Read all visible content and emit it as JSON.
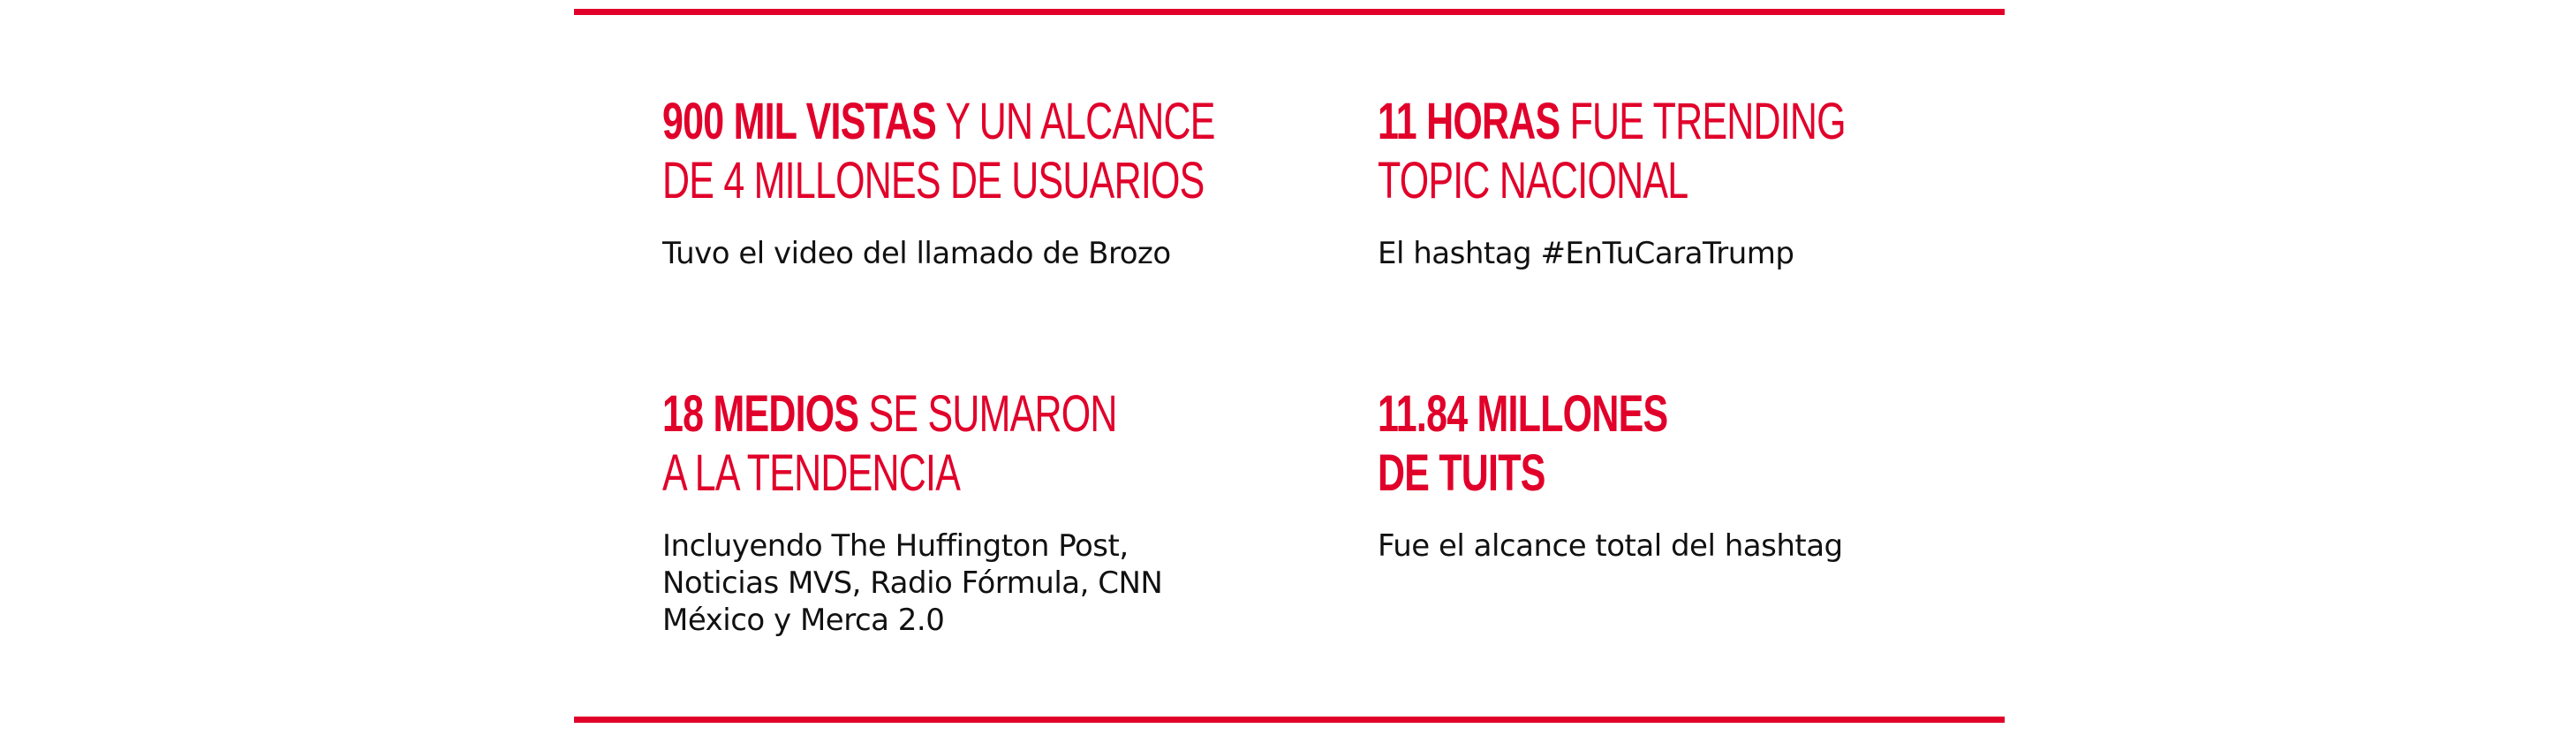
{
  "stats": [
    {
      "heading_line1_strong": "900 MIL VISTAS",
      "heading_line1_rest": " Y UN ALCANCE",
      "heading_line2_strong": "",
      "heading_line2_rest": "DE 4 MILLONES DE USUARIOS",
      "description_lines": [
        "Tuvo el video del llamado de Brozo"
      ]
    },
    {
      "heading_line1_strong": "11 HORAS",
      "heading_line1_rest": " FUE TRENDING",
      "heading_line2_strong": "",
      "heading_line2_rest": "TOPIC NACIONAL",
      "description_lines": [
        "El hashtag #EnTuCaraTrump"
      ]
    },
    {
      "heading_line1_strong": "18 MEDIOS",
      "heading_line1_rest": " SE SUMARON",
      "heading_line2_strong": "",
      "heading_line2_rest": "A LA TENDENCIA",
      "description_lines": [
        "Incluyendo The Huffington Post,",
        "Noticias MVS, Radio Fórmula, CNN",
        "México y Merca 2.0"
      ]
    },
    {
      "heading_line1_strong": "11.84 MILLONES",
      "heading_line1_rest": "",
      "heading_line2_strong": "",
      "heading_line2_rest": "DE TUITS",
      "description_lines": [
        "Fue el alcance total del hashtag"
      ]
    }
  ],
  "colors": {
    "accent": "#e1002a",
    "text": "#111111",
    "background": "#ffffff"
  }
}
